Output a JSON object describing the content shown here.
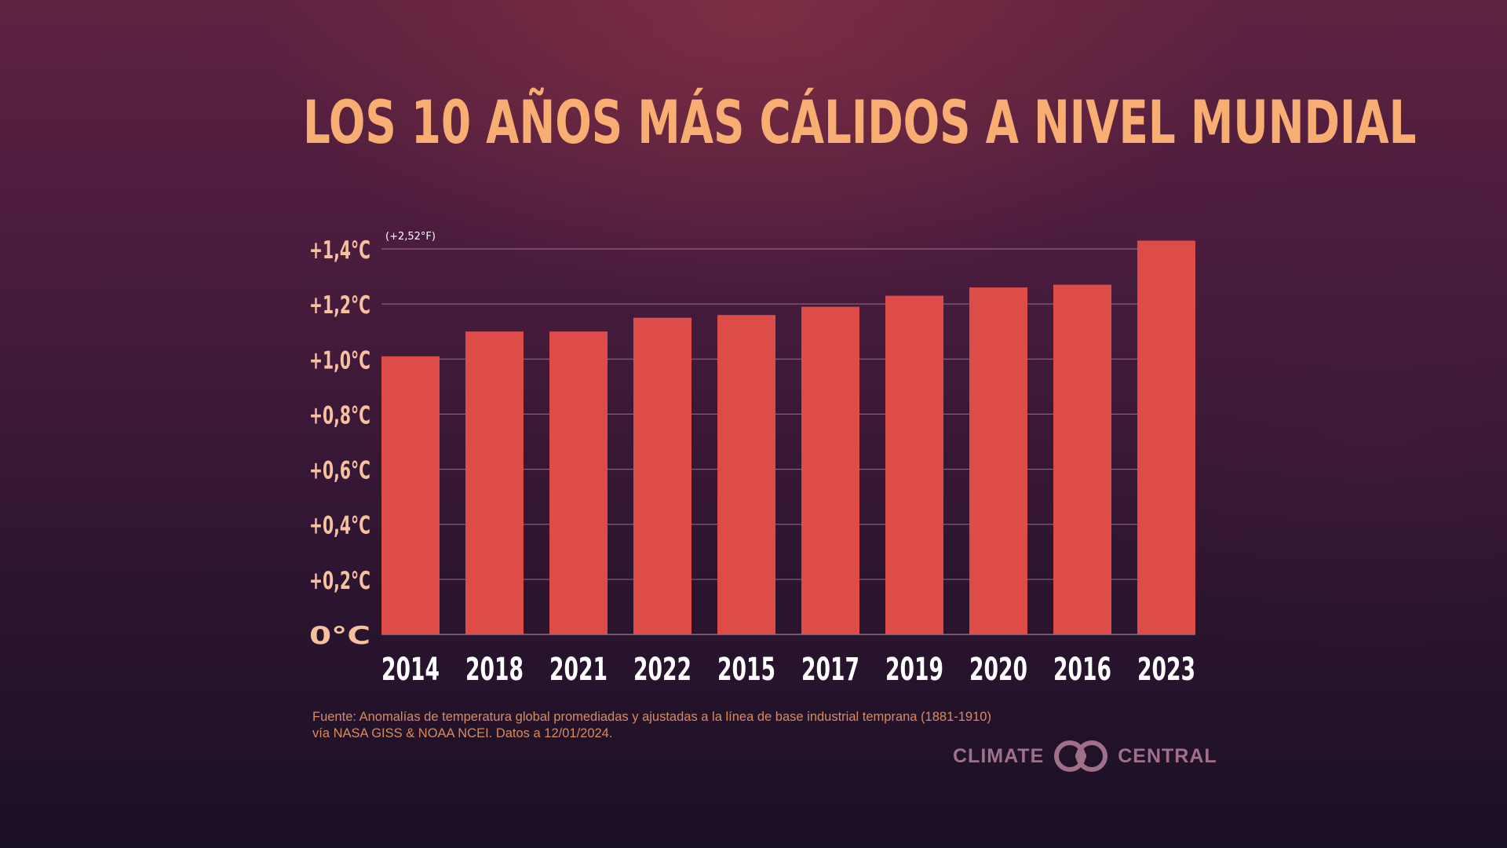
{
  "title": "LOS 10 AÑOS MÁS CÁLIDOS A NIVEL MUNDIAL",
  "source_line1": "Fuente: Anomalías de temperatura global promediadas y ajustadas a la línea de base industrial temprana (1881-1910)",
  "source_line2": "vía NASA GISS & NOAA NCEI. Datos a 12/01/2024.",
  "logo": {
    "left": "CLIMATE",
    "right": "CENTRAL",
    "icon": "climate-central-logo-icon"
  },
  "colors": {
    "title": "#f8ae72",
    "bar": "#dd4c48",
    "grid": "#b48aa0",
    "ytick": "#f7c1a0",
    "xtick": "#ffffff"
  },
  "chart_data": {
    "type": "bar",
    "title": "LOS 10 AÑOS MÁS CÁLIDOS A NIVEL MUNDIAL",
    "xlabel": "",
    "ylabel": "",
    "categories": [
      "2014",
      "2018",
      "2021",
      "2022",
      "2015",
      "2017",
      "2019",
      "2020",
      "2016",
      "2023"
    ],
    "values": [
      1.01,
      1.1,
      1.1,
      1.15,
      1.16,
      1.19,
      1.23,
      1.26,
      1.27,
      1.43
    ],
    "ylim": [
      0,
      1.4
    ],
    "yticks": [
      0,
      0.2,
      0.4,
      0.6,
      0.8,
      1.0,
      1.2,
      1.4
    ],
    "ytick_labels": [
      "0°C",
      "+0,2°C",
      "+0,4°C",
      "+0,6°C",
      "+0,8°C",
      "+1,0°C",
      "+1,2°C",
      "+1,4°C"
    ],
    "top_gridline_note": "(+2,52°F)",
    "grid": true,
    "legend": "none"
  }
}
